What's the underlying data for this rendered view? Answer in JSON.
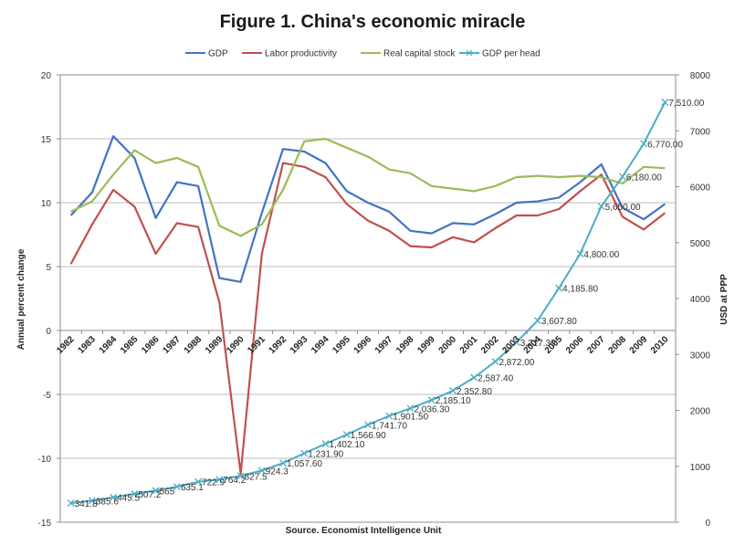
{
  "chart_data": {
    "type": "line",
    "title": "Figure 1. China's economic miracle",
    "source": "Source. Economist Intelligence Unit",
    "xlabel": "",
    "ylabel_left": "Annual percent change",
    "ylabel_right": "USD at PPP",
    "ylim_left": [
      -15,
      20
    ],
    "ylim_right": [
      0,
      8000
    ],
    "yticks_left": [
      "20",
      "15",
      "10",
      "5",
      "0",
      "-5",
      "-10",
      "-15"
    ],
    "yticks_right": [
      "8000",
      "7000",
      "6000",
      "5000",
      "4000",
      "3000",
      "2000",
      "1000",
      "0"
    ],
    "legend_position": "top",
    "grid": true,
    "categories": [
      "1982",
      "1983",
      "1984",
      "1985",
      "1986",
      "1987",
      "1988",
      "1989",
      "1990",
      "1991",
      "1992",
      "1993",
      "1994",
      "1995",
      "1996",
      "1997",
      "1998",
      "1999",
      "2000",
      "2001",
      "2002",
      "2003",
      "2004",
      "2005",
      "2006",
      "2007",
      "2008",
      "2009",
      "2010"
    ],
    "series": [
      {
        "name": "GDP",
        "axis": "left",
        "color": "#4472C4",
        "values": [
          9.0,
          10.8,
          15.2,
          13.5,
          8.8,
          11.6,
          11.3,
          4.1,
          3.8,
          9.2,
          14.2,
          14.0,
          13.1,
          10.9,
          10.0,
          9.3,
          7.8,
          7.6,
          8.4,
          8.3,
          9.1,
          10.0,
          10.1,
          10.4,
          11.6,
          13.0,
          9.6,
          8.7,
          9.9
        ]
      },
      {
        "name": "Labor productivity",
        "axis": "left",
        "color": "#C0504D",
        "values": [
          5.2,
          8.3,
          11.0,
          9.7,
          6.0,
          8.4,
          8.1,
          2.2,
          -11.2,
          6.0,
          13.1,
          12.8,
          12.0,
          9.9,
          8.6,
          7.8,
          6.6,
          6.5,
          7.3,
          6.9,
          8.0,
          9.0,
          9.0,
          9.5,
          10.9,
          12.2,
          8.9,
          7.9,
          9.2
        ]
      },
      {
        "name": "Real capital stock",
        "axis": "left",
        "color": "#9BBB59",
        "values": [
          9.3,
          10.1,
          12.2,
          14.1,
          13.1,
          13.5,
          12.8,
          8.2,
          7.4,
          8.3,
          11.0,
          14.8,
          15.0,
          14.3,
          13.6,
          12.6,
          12.3,
          11.3,
          11.1,
          10.9,
          11.3,
          12.0,
          12.1,
          12.0,
          12.1,
          12.0,
          11.5,
          12.8,
          12.7
        ]
      },
      {
        "name": "GDP per head",
        "axis": "right",
        "color": "#4BACC6",
        "values": [
          341.8,
          385.6,
          445.5,
          507.2,
          565,
          635.1,
          722.9,
          764.2,
          827.5,
          924.3,
          1057.6,
          1231.9,
          1402.1,
          1566.9,
          1741.7,
          1901.5,
          2036.3,
          2185.1,
          2352.8,
          2587.4,
          2872.0,
          3217.3,
          3607.8,
          4185.8,
          4800.0,
          5650.0,
          6180.0,
          6770.0,
          7510.0
        ],
        "data_labels": [
          "341.8",
          "385.6",
          "445.5",
          "507.2",
          "565",
          "635.1",
          "722.9",
          "764.2",
          "827.5",
          "924.3",
          "1,057.60",
          "1,231.90",
          "1,402.10",
          "1,566.90",
          "1,741.70",
          "1,901.50",
          "2,036.30",
          "2,185.10",
          "2,352.80",
          "2,587.40",
          "2,872.00",
          "3,217.30",
          "3,607.80",
          "4,185.80",
          "4,800.00",
          "5,650.00",
          "6,180.00",
          "6,770.00",
          "7,510.00"
        ]
      }
    ]
  }
}
